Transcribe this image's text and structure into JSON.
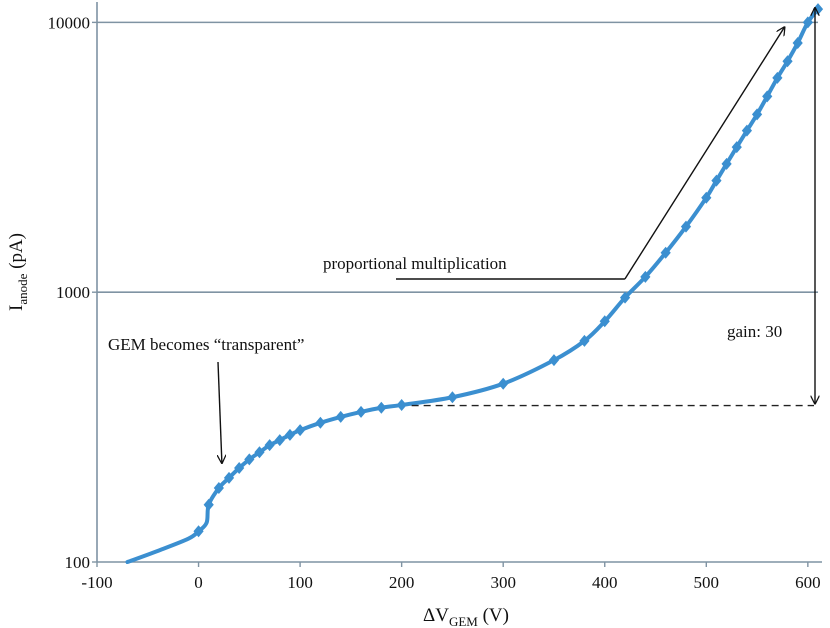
{
  "chart_data": {
    "type": "line",
    "xlabel": "ΔV",
    "xlabel_sub": "GEM",
    "xlabel_unit": " (V)",
    "ylabel": "I",
    "ylabel_sub": "anode",
    "ylabel_unit": " (pA)",
    "xlim": [
      -100,
      610
    ],
    "ylim": [
      100,
      11500
    ],
    "yscale": "log",
    "xticks": [
      -100,
      0,
      100,
      200,
      300,
      400,
      500,
      600
    ],
    "xtick_labels": [
      "-100",
      "0",
      "100",
      "200",
      "300",
      "400",
      "500",
      "600"
    ],
    "yticks": [
      100,
      1000,
      10000
    ],
    "ytick_labels": [
      "100",
      "1000",
      "10000"
    ],
    "gridlines": "horizontal at 1000 and 10000",
    "line_color": "#3b8fd0",
    "series": [
      {
        "name": "",
        "curve": [
          {
            "x": -70,
            "y": 100
          },
          {
            "x": -40,
            "y": 110
          },
          {
            "x": -10,
            "y": 122
          },
          {
            "x": 0,
            "y": 130
          },
          {
            "x": 8,
            "y": 140
          },
          {
            "x": 10,
            "y": 163
          },
          {
            "x": 20,
            "y": 188
          },
          {
            "x": 30,
            "y": 205
          },
          {
            "x": 40,
            "y": 223
          },
          {
            "x": 50,
            "y": 240
          },
          {
            "x": 60,
            "y": 255
          },
          {
            "x": 70,
            "y": 271
          },
          {
            "x": 80,
            "y": 283
          },
          {
            "x": 90,
            "y": 296
          },
          {
            "x": 100,
            "y": 308
          },
          {
            "x": 120,
            "y": 328
          },
          {
            "x": 140,
            "y": 345
          },
          {
            "x": 160,
            "y": 360
          },
          {
            "x": 180,
            "y": 373
          },
          {
            "x": 200,
            "y": 382
          },
          {
            "x": 250,
            "y": 408
          },
          {
            "x": 300,
            "y": 458
          },
          {
            "x": 350,
            "y": 560
          },
          {
            "x": 380,
            "y": 660
          },
          {
            "x": 400,
            "y": 780
          },
          {
            "x": 420,
            "y": 955
          },
          {
            "x": 440,
            "y": 1140
          },
          {
            "x": 460,
            "y": 1400
          },
          {
            "x": 480,
            "y": 1750
          },
          {
            "x": 500,
            "y": 2240
          },
          {
            "x": 510,
            "y": 2590
          },
          {
            "x": 520,
            "y": 2990
          },
          {
            "x": 530,
            "y": 3450
          },
          {
            "x": 540,
            "y": 3970
          },
          {
            "x": 550,
            "y": 4560
          },
          {
            "x": 560,
            "y": 5320
          },
          {
            "x": 570,
            "y": 6230
          },
          {
            "x": 580,
            "y": 7180
          },
          {
            "x": 590,
            "y": 8390
          },
          {
            "x": 600,
            "y": 10000
          },
          {
            "x": 610,
            "y": 11200
          }
        ],
        "markers": [
          {
            "x": 0,
            "y": 130
          },
          {
            "x": 10,
            "y": 163
          },
          {
            "x": 20,
            "y": 188
          },
          {
            "x": 30,
            "y": 205
          },
          {
            "x": 40,
            "y": 223
          },
          {
            "x": 50,
            "y": 240
          },
          {
            "x": 60,
            "y": 255
          },
          {
            "x": 70,
            "y": 271
          },
          {
            "x": 80,
            "y": 283
          },
          {
            "x": 90,
            "y": 296
          },
          {
            "x": 100,
            "y": 308
          },
          {
            "x": 120,
            "y": 328
          },
          {
            "x": 140,
            "y": 345
          },
          {
            "x": 160,
            "y": 360
          },
          {
            "x": 180,
            "y": 373
          },
          {
            "x": 200,
            "y": 382
          },
          {
            "x": 250,
            "y": 408
          },
          {
            "x": 300,
            "y": 458
          },
          {
            "x": 350,
            "y": 560
          },
          {
            "x": 380,
            "y": 660
          },
          {
            "x": 400,
            "y": 780
          },
          {
            "x": 420,
            "y": 955
          },
          {
            "x": 440,
            "y": 1140
          },
          {
            "x": 460,
            "y": 1400
          },
          {
            "x": 480,
            "y": 1750
          },
          {
            "x": 500,
            "y": 2240
          },
          {
            "x": 510,
            "y": 2590
          },
          {
            "x": 520,
            "y": 2990
          },
          {
            "x": 530,
            "y": 3450
          },
          {
            "x": 540,
            "y": 3970
          },
          {
            "x": 550,
            "y": 4560
          },
          {
            "x": 560,
            "y": 5320
          },
          {
            "x": 570,
            "y": 6230
          },
          {
            "x": 580,
            "y": 7180
          },
          {
            "x": 590,
            "y": 8390
          },
          {
            "x": 600,
            "y": 10000
          },
          {
            "x": 610,
            "y": 11200
          }
        ]
      }
    ],
    "annotations": [
      {
        "text": "GEM becomes “transparent”",
        "arrow_to": {
          "x": 22,
          "y": 225
        }
      },
      {
        "text": "proportional multiplication",
        "leader_from": {
          "x": 410,
          "y": 905
        },
        "arrow_to": {
          "x": 577,
          "y": 9600
        }
      },
      {
        "text": "gain: 30",
        "span": {
          "x": 610,
          "y_low": 380,
          "y_high": 11500
        }
      }
    ],
    "reference_line": {
      "y": 380,
      "x_from": 200,
      "x_to": 610,
      "style": "dashed"
    }
  }
}
